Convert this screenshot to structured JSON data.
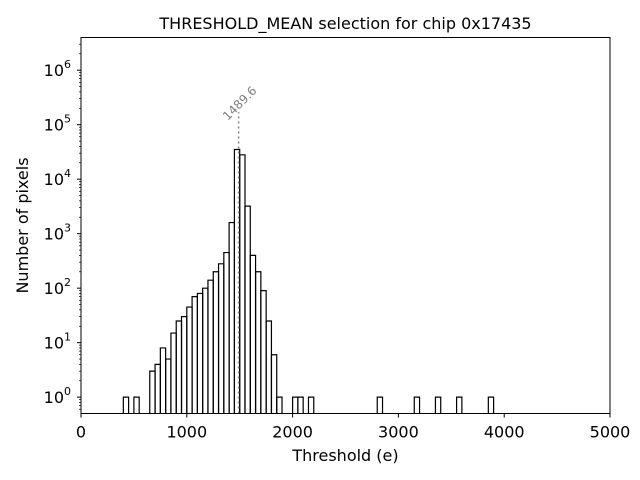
{
  "chart_data": {
    "type": "step-histogram",
    "title": "THRESHOLD_MEAN selection for chip 0x17435",
    "xlabel": "Threshold (e)",
    "ylabel": "Number of pixels",
    "xlim": [
      0,
      5000
    ],
    "ylim_log10": [
      -0.3,
      6.6
    ],
    "yscale": "log",
    "grid": false,
    "xticks": [
      0,
      1000,
      2000,
      3000,
      4000,
      5000
    ],
    "xtick_labels": [
      "0",
      "1000",
      "2000",
      "3000",
      "4000",
      "5000"
    ],
    "yticks_exp": [
      0,
      1,
      2,
      3,
      4,
      5,
      6
    ],
    "ytick_base": "10",
    "bin_width": 50,
    "bins": [
      {
        "x": 400,
        "y": 1
      },
      {
        "x": 500,
        "y": 1
      },
      {
        "x": 650,
        "y": 3
      },
      {
        "x": 700,
        "y": 4
      },
      {
        "x": 750,
        "y": 8
      },
      {
        "x": 800,
        "y": 5
      },
      {
        "x": 850,
        "y": 15
      },
      {
        "x": 900,
        "y": 25
      },
      {
        "x": 950,
        "y": 30
      },
      {
        "x": 1000,
        "y": 45
      },
      {
        "x": 1050,
        "y": 70
      },
      {
        "x": 1100,
        "y": 80
      },
      {
        "x": 1150,
        "y": 100
      },
      {
        "x": 1200,
        "y": 140
      },
      {
        "x": 1250,
        "y": 200
      },
      {
        "x": 1300,
        "y": 280
      },
      {
        "x": 1350,
        "y": 450
      },
      {
        "x": 1400,
        "y": 1600
      },
      {
        "x": 1450,
        "y": 35000
      },
      {
        "x": 1500,
        "y": 28000
      },
      {
        "x": 1550,
        "y": 3200
      },
      {
        "x": 1600,
        "y": 400
      },
      {
        "x": 1650,
        "y": 200
      },
      {
        "x": 1700,
        "y": 90
      },
      {
        "x": 1750,
        "y": 25
      },
      {
        "x": 1800,
        "y": 6
      },
      {
        "x": 1850,
        "y": 1
      },
      {
        "x": 2000,
        "y": 1
      },
      {
        "x": 2050,
        "y": 1
      },
      {
        "x": 2150,
        "y": 1
      },
      {
        "x": 2800,
        "y": 1
      },
      {
        "x": 3150,
        "y": 1
      },
      {
        "x": 3350,
        "y": 1
      },
      {
        "x": 3550,
        "y": 1
      },
      {
        "x": 3850,
        "y": 1
      }
    ],
    "vline": {
      "x": 1489.6,
      "label": "1489.6",
      "ymax": 170000,
      "style": "dotted",
      "color": "#808080"
    },
    "colors": {
      "line": "#000000",
      "annotation": "#808080"
    }
  }
}
